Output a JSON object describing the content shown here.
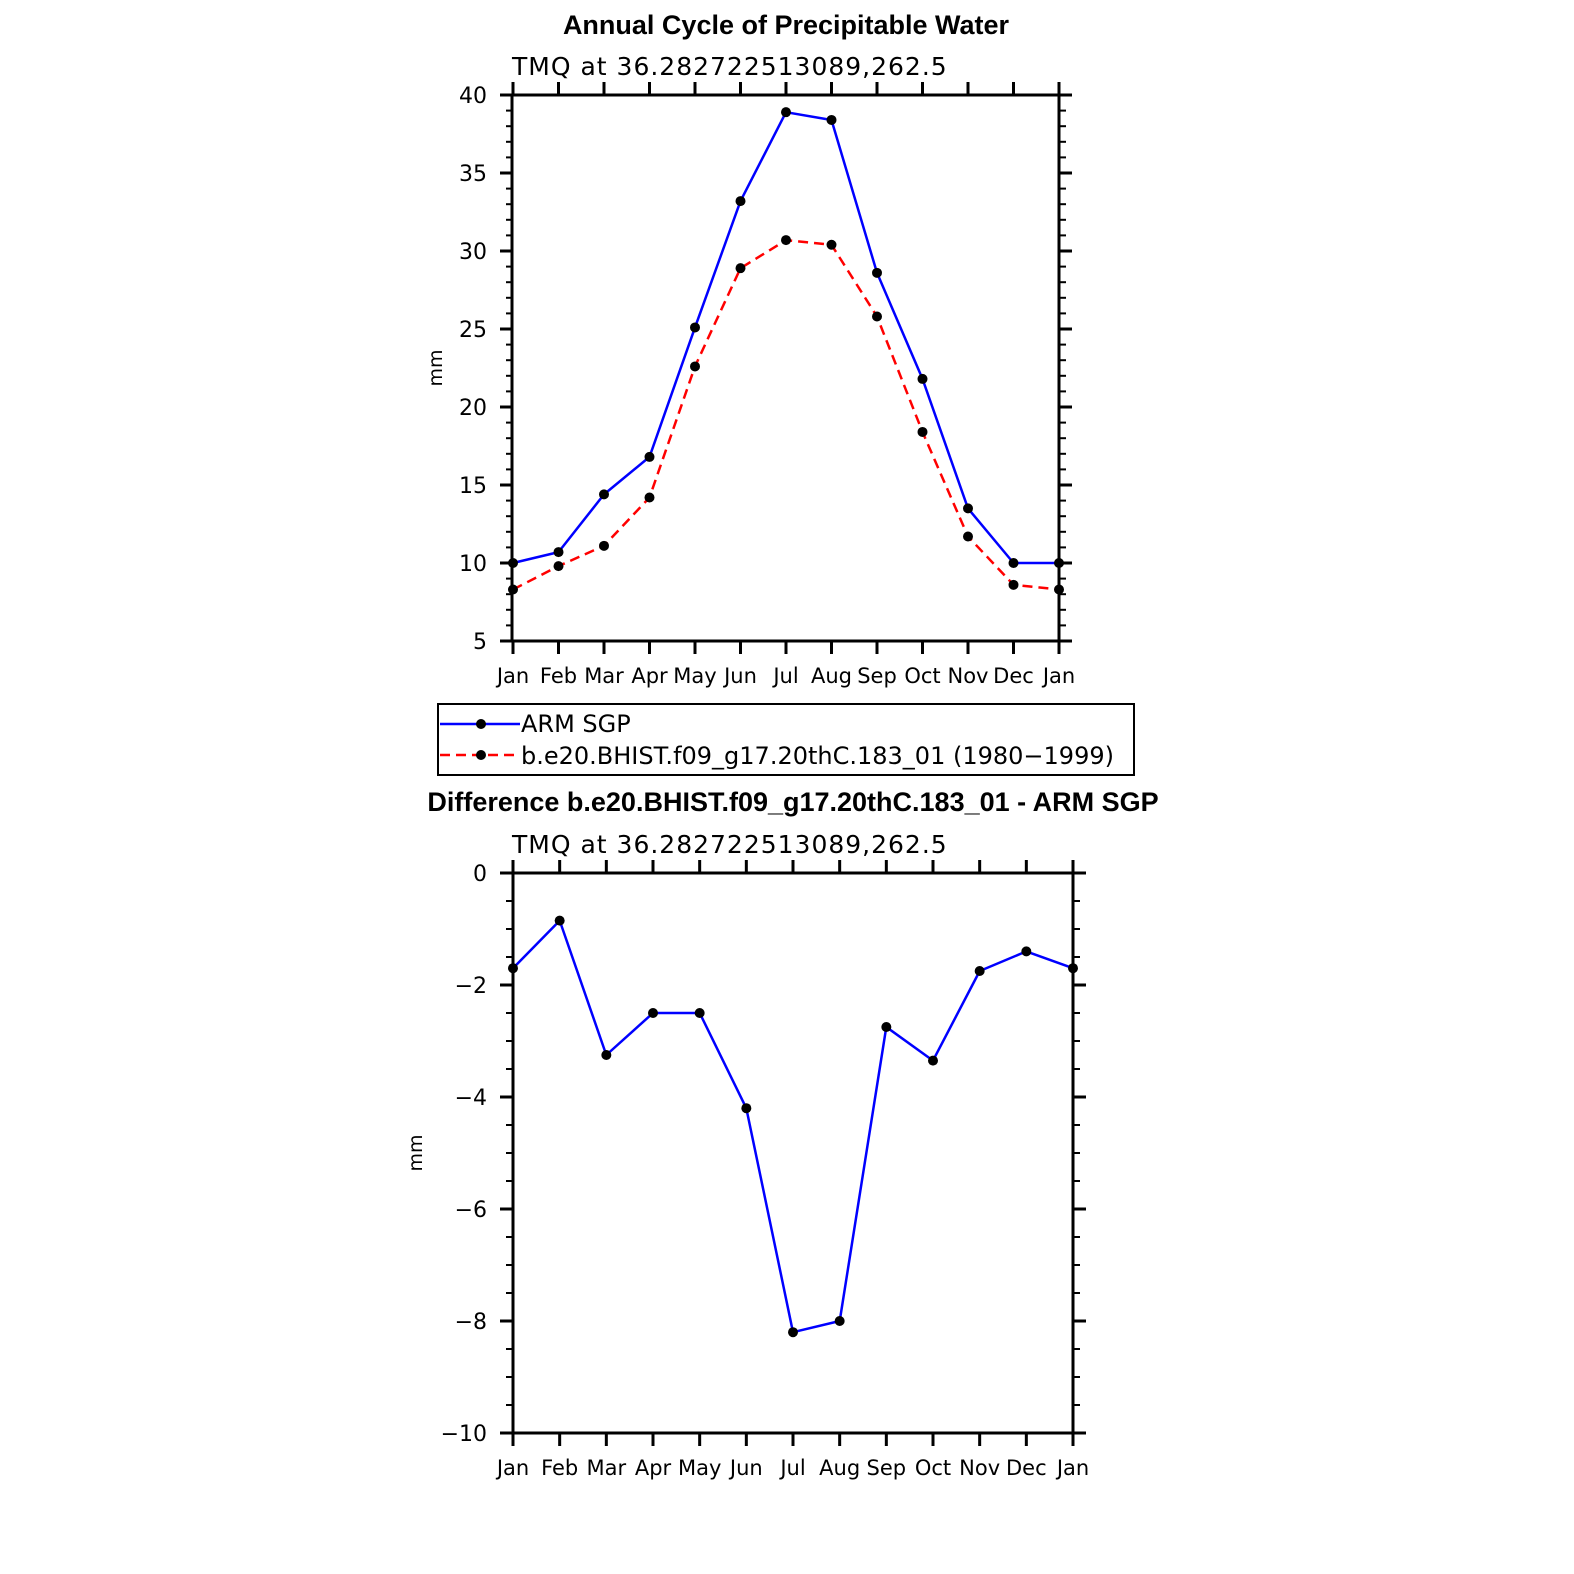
{
  "chart_data": [
    {
      "type": "line",
      "title": "Annual Cycle of Precipitable Water",
      "subtitle": "TMQ at 36.282722513089,262.5",
      "xlabel": "",
      "ylabel": "mm",
      "categories": [
        "Jan",
        "Feb",
        "Mar",
        "Apr",
        "May",
        "Jun",
        "Jul",
        "Aug",
        "Sep",
        "Oct",
        "Nov",
        "Dec",
        "Jan"
      ],
      "ylim": [
        5,
        40
      ],
      "yticks": [
        "5",
        "10",
        "15",
        "20",
        "25",
        "30",
        "35",
        "40"
      ],
      "series": [
        {
          "name": "ARM SGP",
          "color": "#0000ff",
          "dash": "solid",
          "values": [
            10.0,
            10.7,
            14.4,
            16.8,
            25.1,
            33.2,
            38.9,
            38.4,
            28.6,
            21.8,
            13.5,
            10.0,
            10.0
          ]
        },
        {
          "name": "b.e20.BHIST.f09_g17.20thC.183_01 (1980−1999)",
          "color": "#ff0000",
          "dash": "dashed",
          "values": [
            8.3,
            9.8,
            11.1,
            14.2,
            22.6,
            28.9,
            30.7,
            30.4,
            25.8,
            18.4,
            11.7,
            8.6,
            8.3
          ]
        }
      ],
      "legend": "below"
    },
    {
      "type": "line",
      "title": "Difference b.e20.BHIST.f09_g17.20thC.183_01 - ARM SGP",
      "subtitle": "TMQ at 36.282722513089,262.5",
      "xlabel": "",
      "ylabel": "mm",
      "categories": [
        "Jan",
        "Feb",
        "Mar",
        "Apr",
        "May",
        "Jun",
        "Jul",
        "Aug",
        "Sep",
        "Oct",
        "Nov",
        "Dec",
        "Jan"
      ],
      "ylim": [
        -10,
        0
      ],
      "yticks": [
        "−10",
        "−8",
        "−6",
        "−4",
        "−2",
        "0"
      ],
      "series": [
        {
          "name": "Difference",
          "color": "#0000ff",
          "dash": "solid",
          "values": [
            -1.7,
            -0.85,
            -3.25,
            -2.5,
            -2.5,
            -4.2,
            -8.2,
            -8.0,
            -2.75,
            -3.35,
            -1.75,
            -1.4,
            -1.7
          ]
        }
      ]
    }
  ]
}
